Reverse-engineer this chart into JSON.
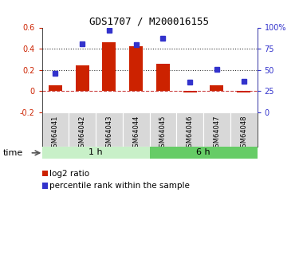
{
  "title": "GDS1707 / M200016155",
  "samples": [
    "GSM64041",
    "GSM64042",
    "GSM64043",
    "GSM64044",
    "GSM64045",
    "GSM64046",
    "GSM64047",
    "GSM64048"
  ],
  "log2_ratio": [
    0.055,
    0.245,
    0.46,
    0.425,
    0.255,
    -0.01,
    0.055,
    -0.015
  ],
  "percentile_rank": [
    46,
    81,
    97,
    80,
    87,
    36,
    51,
    37
  ],
  "groups": [
    {
      "label": "1 h",
      "color_light": "#c8f0c8",
      "color_dark": "#66cc66",
      "start": 0,
      "end": 3
    },
    {
      "label": "6 h",
      "color_light": "#66cc66",
      "color_dark": "#33aa33",
      "start": 4,
      "end": 7
    }
  ],
  "bar_color": "#cc2200",
  "dot_color": "#3333cc",
  "left_ylim": [
    -0.2,
    0.6
  ],
  "right_ylim": [
    0,
    100
  ],
  "left_yticks": [
    -0.2,
    0.0,
    0.2,
    0.4,
    0.6
  ],
  "right_yticks": [
    0,
    25,
    50,
    75,
    100
  ],
  "right_yticklabels": [
    "0",
    "25",
    "50",
    "75",
    "100%"
  ],
  "hline_y": [
    0.0,
    0.2,
    0.4
  ],
  "hline_styles": [
    "--",
    ":",
    ":"
  ],
  "hline_colors": [
    "#cc4444",
    "#333333",
    "#333333"
  ],
  "label_bg": "#d8d8d8",
  "background_color": "#ffffff"
}
